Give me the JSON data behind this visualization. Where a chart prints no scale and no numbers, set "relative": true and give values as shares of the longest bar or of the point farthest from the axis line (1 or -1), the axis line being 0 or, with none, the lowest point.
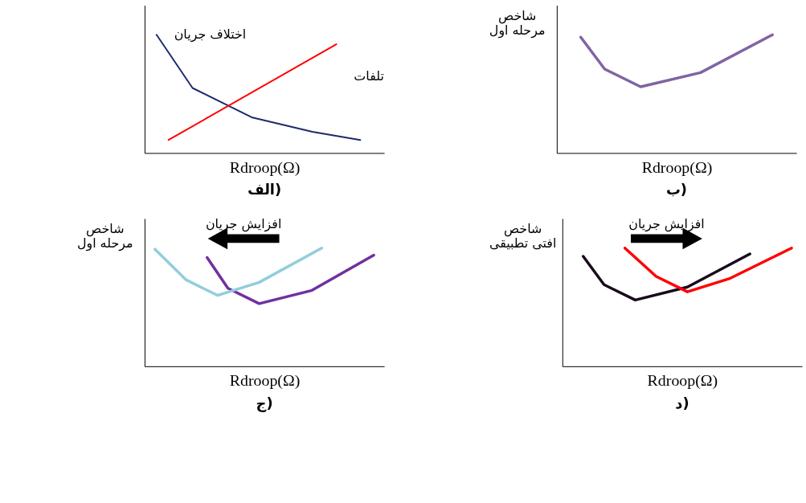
{
  "chart_data": [
    {
      "type": "line",
      "title": "الف)",
      "xlabel": "Rdroop(Ω)",
      "relative": true,
      "tick_labels": false,
      "categories": [
        null,
        null,
        null,
        null,
        null,
        null,
        null,
        null,
        null,
        null,
        null,
        null,
        null,
        null,
        null,
        null,
        null,
        null,
        null,
        null,
        null
      ],
      "series": [
        {
          "name": "اختلاف جریان",
          "color": "#1f2a6b",
          "values": [
            null,
            1,
            null,
            null,
            0.55,
            null,
            null,
            null,
            null,
            0.3,
            null,
            null,
            null,
            null,
            0.18,
            null,
            null,
            null,
            0.11,
            null,
            null
          ]
        },
        {
          "name": "تلفات",
          "color": "#ff0000",
          "values": [
            null,
            null,
            0.11,
            null,
            null,
            null,
            null,
            null,
            null,
            null,
            null,
            null,
            null,
            null,
            null,
            null,
            0.92,
            null,
            null,
            null,
            null
          ]
        }
      ]
    },
    {
      "type": "line",
      "title": "ب)",
      "xlabel": "Rdroop(Ω)",
      "ylabel": "شاخص مرحله اول",
      "relative": true,
      "tick_labels": false,
      "categories": [
        null,
        null,
        null,
        null,
        null,
        null,
        null,
        null,
        null,
        null,
        null,
        null,
        null,
        null,
        null,
        null,
        null,
        null,
        null,
        null,
        null
      ],
      "series": [
        {
          "color": "#8064a2",
          "values": [
            null,
            null,
            0.98,
            null,
            0.71,
            null,
            null,
            0.56,
            null,
            null,
            null,
            null,
            0.68,
            null,
            null,
            null,
            null,
            null,
            1,
            null,
            null
          ]
        }
      ]
    },
    {
      "type": "line",
      "title": "ج)",
      "xlabel": "Rdroop(Ω)",
      "ylabel": "شاخص مرحله اول",
      "relative": true,
      "tick_labels": false,
      "annotations": [
        "افزایش جریان"
      ],
      "categories": [
        null,
        null,
        null,
        null,
        null,
        null,
        null,
        null,
        null,
        null,
        null,
        null,
        null,
        null,
        null,
        null,
        null,
        null,
        null,
        null,
        null,
        null,
        null,
        null
      ],
      "series": [
        {
          "color": "#7030a0",
          "values": [
            null,
            null,
            null,
            null,
            null,
            null,
            0.92,
            null,
            0.66,
            null,
            null,
            0.53,
            null,
            null,
            null,
            null,
            0.64,
            null,
            null,
            null,
            null,
            null,
            0.94,
            null
          ]
        },
        {
          "color": "#92cddc",
          "values": [
            null,
            0.99,
            null,
            null,
            0.73,
            null,
            null,
            0.6,
            null,
            null,
            null,
            0.71,
            null,
            null,
            null,
            null,
            null,
            1,
            null,
            null,
            null,
            null,
            null,
            null
          ]
        }
      ]
    },
    {
      "type": "line",
      "title": "د)",
      "xlabel": "Rdroop(Ω)",
      "ylabel": "شاخص افتی تطبیقی",
      "relative": true,
      "tick_labels": false,
      "annotations": [
        "افزایش جریان"
      ],
      "categories": [
        null,
        null,
        null,
        null,
        null,
        null,
        null,
        null,
        null,
        null,
        null,
        null,
        null,
        null,
        null,
        null,
        null,
        null,
        null,
        null,
        null,
        null,
        null,
        null
      ],
      "series": [
        {
          "color": "#1a0a1f",
          "values": [
            null,
            null,
            0.93,
            null,
            0.69,
            null,
            null,
            0.56,
            null,
            null,
            null,
            null,
            0.67,
            null,
            null,
            null,
            null,
            null,
            0.95,
            null,
            null,
            null,
            null,
            null
          ]
        },
        {
          "color": "#ff0000",
          "values": [
            null,
            null,
            null,
            null,
            null,
            null,
            1,
            null,
            null,
            0.76,
            null,
            null,
            0.63,
            null,
            null,
            null,
            0.74,
            null,
            null,
            null,
            null,
            null,
            1,
            null
          ]
        }
      ]
    }
  ]
}
